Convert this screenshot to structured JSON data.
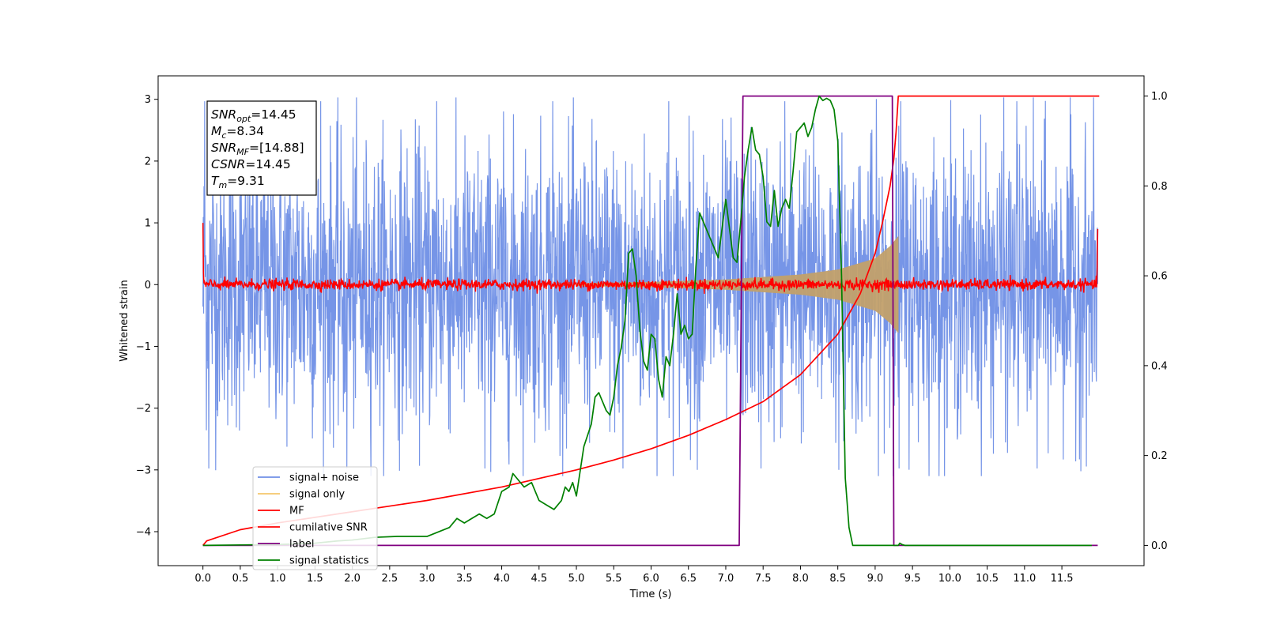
{
  "chart_data": {
    "type": "line",
    "title": "",
    "xlabel": "Time (s)",
    "ylabel": "Whitened strain",
    "xlim": [
      -0.6,
      12.6
    ],
    "ylim": [
      -4.55,
      3.38
    ],
    "y2lim": [
      -0.045,
      1.045
    ],
    "grid": false,
    "legend_position": "lower-left",
    "xticks": [
      0.0,
      0.5,
      1.0,
      1.5,
      2.0,
      2.5,
      3.0,
      3.5,
      4.0,
      4.5,
      5.0,
      5.5,
      6.0,
      6.5,
      7.0,
      7.5,
      8.0,
      8.5,
      9.0,
      9.5,
      10.0,
      10.5,
      11.0,
      11.5
    ],
    "xtick_labels": [
      "0.0",
      "0.5",
      "1.0",
      "1.5",
      "2.0",
      "2.5",
      "3.0",
      "3.5",
      "4.0",
      "4.5",
      "5.0",
      "5.5",
      "6.0",
      "6.5",
      "7.0",
      "7.5",
      "8.0",
      "8.5",
      "9.0",
      "9.5",
      "10.0",
      "10.5",
      "11.0",
      "11.5"
    ],
    "yticks": [
      -4,
      -3,
      -2,
      -1,
      0,
      1,
      2,
      3
    ],
    "ytick_labels": [
      "−4",
      "−3",
      "−2",
      "−1",
      "0",
      "1",
      "2",
      "3"
    ],
    "y2ticks": [
      0.0,
      0.2,
      0.4,
      0.6,
      0.8,
      1.0
    ],
    "y2tick_labels": [
      "0.0",
      "0.2",
      "0.4",
      "0.6",
      "0.8",
      "1.0"
    ],
    "annotation": [
      {
        "base": "SNR",
        "sub": "opt",
        "value": "=14.45"
      },
      {
        "base": "M",
        "sub": "c",
        "value": "=8.34"
      },
      {
        "base": "SNR",
        "sub": "MF",
        "value": "=[14.88]"
      },
      {
        "base": "CSNR",
        "sub": "",
        "value": "=14.45"
      },
      {
        "base": "T",
        "sub": "m",
        "value": "=9.31"
      }
    ],
    "series": [
      {
        "name": "signal+ noise",
        "axis": "left",
        "color": "#6f8fe6",
        "kind": "noise",
        "x_range": [
          0.0,
          11.98
        ],
        "typical_amplitude": 1.2,
        "max": 3.03,
        "min": -3.1
      },
      {
        "name": "signal only",
        "axis": "left",
        "color": "#f5c76b",
        "kind": "chirp",
        "x_range": [
          5.0,
          9.31
        ],
        "envelope": [
          [
            5.0,
            0.02
          ],
          [
            6.0,
            0.04
          ],
          [
            7.0,
            0.08
          ],
          [
            8.0,
            0.16
          ],
          [
            8.5,
            0.24
          ],
          [
            9.0,
            0.42
          ],
          [
            9.2,
            0.62
          ],
          [
            9.31,
            0.78
          ]
        ]
      },
      {
        "name": "MF",
        "axis": "left",
        "color": "#ff0000",
        "kind": "mf",
        "x_range": [
          0.0,
          11.98
        ],
        "typical_amplitude": 0.08,
        "start_value": 1.0,
        "end_value": 0.9
      },
      {
        "name": "cumilative SNR",
        "axis": "right",
        "color": "#ff0000",
        "x": [
          0.0,
          0.05,
          0.5,
          1.0,
          2.0,
          3.0,
          4.0,
          5.0,
          5.5,
          6.0,
          6.5,
          7.0,
          7.5,
          8.0,
          8.5,
          8.8,
          9.0,
          9.1,
          9.2,
          9.25,
          9.28,
          9.31,
          12.0
        ],
        "values": [
          0.0,
          0.01,
          0.035,
          0.05,
          0.075,
          0.1,
          0.13,
          0.168,
          0.19,
          0.215,
          0.245,
          0.28,
          0.32,
          0.38,
          0.47,
          0.56,
          0.65,
          0.72,
          0.8,
          0.86,
          0.92,
          1.0,
          1.0
        ]
      },
      {
        "name": "label",
        "axis": "right",
        "color": "#800080",
        "x": [
          0.0,
          7.18,
          7.23,
          9.23,
          9.25,
          11.98
        ],
        "values": [
          0.0,
          0.0,
          1.0,
          1.0,
          0.0,
          0.0
        ]
      },
      {
        "name": "signal statistics",
        "axis": "right",
        "color": "#008000",
        "x": [
          0.0,
          0.5,
          1.0,
          1.5,
          1.8,
          2.0,
          2.3,
          2.6,
          3.0,
          3.3,
          3.4,
          3.5,
          3.6,
          3.7,
          3.8,
          3.9,
          4.0,
          4.1,
          4.15,
          4.3,
          4.4,
          4.5,
          4.6,
          4.7,
          4.8,
          4.85,
          4.9,
          4.95,
          5.0,
          5.1,
          5.2,
          5.25,
          5.3,
          5.4,
          5.45,
          5.5,
          5.55,
          5.6,
          5.65,
          5.7,
          5.75,
          5.8,
          5.85,
          5.9,
          5.95,
          6.0,
          6.05,
          6.1,
          6.15,
          6.2,
          6.25,
          6.3,
          6.35,
          6.4,
          6.45,
          6.5,
          6.55,
          6.6,
          6.65,
          6.7,
          6.75,
          6.8,
          6.85,
          6.9,
          7.0,
          7.1,
          7.15,
          7.2,
          7.25,
          7.3,
          7.35,
          7.4,
          7.45,
          7.5,
          7.55,
          7.6,
          7.65,
          7.7,
          7.75,
          7.8,
          7.85,
          7.9,
          7.95,
          8.0,
          8.05,
          8.1,
          8.15,
          8.2,
          8.25,
          8.3,
          8.35,
          8.4,
          8.45,
          8.5,
          8.55,
          8.6,
          8.65,
          8.7,
          8.8,
          8.9,
          9.0,
          9.1,
          9.2,
          9.25,
          9.28,
          9.31,
          9.33,
          9.36,
          9.4,
          9.45,
          10.0,
          11.0,
          11.9
        ],
        "values": [
          0.0,
          0.001,
          0.002,
          0.005,
          0.01,
          0.012,
          0.018,
          0.02,
          0.02,
          0.04,
          0.06,
          0.05,
          0.06,
          0.07,
          0.06,
          0.07,
          0.12,
          0.13,
          0.16,
          0.13,
          0.14,
          0.1,
          0.09,
          0.08,
          0.1,
          0.13,
          0.12,
          0.14,
          0.11,
          0.22,
          0.27,
          0.33,
          0.34,
          0.3,
          0.29,
          0.33,
          0.4,
          0.44,
          0.5,
          0.65,
          0.66,
          0.6,
          0.48,
          0.41,
          0.39,
          0.47,
          0.46,
          0.37,
          0.33,
          0.42,
          0.4,
          0.47,
          0.56,
          0.47,
          0.49,
          0.46,
          0.47,
          0.62,
          0.74,
          0.72,
          0.7,
          0.68,
          0.66,
          0.64,
          0.77,
          0.64,
          0.63,
          0.72,
          0.82,
          0.88,
          0.93,
          0.88,
          0.87,
          0.82,
          0.72,
          0.71,
          0.79,
          0.71,
          0.75,
          0.77,
          0.75,
          0.83,
          0.92,
          0.93,
          0.94,
          0.91,
          0.93,
          0.97,
          1.0,
          0.99,
          0.995,
          0.99,
          0.97,
          0.9,
          0.6,
          0.15,
          0.04,
          0.0,
          0.0,
          0.0,
          0.0,
          0.0,
          0.0,
          0.0,
          0.0,
          0.0,
          0.005,
          0.002,
          0.0,
          0.0,
          0.0,
          0.0,
          0.0
        ],
        "values_note_x": "x and values are paired arrays"
      }
    ]
  }
}
